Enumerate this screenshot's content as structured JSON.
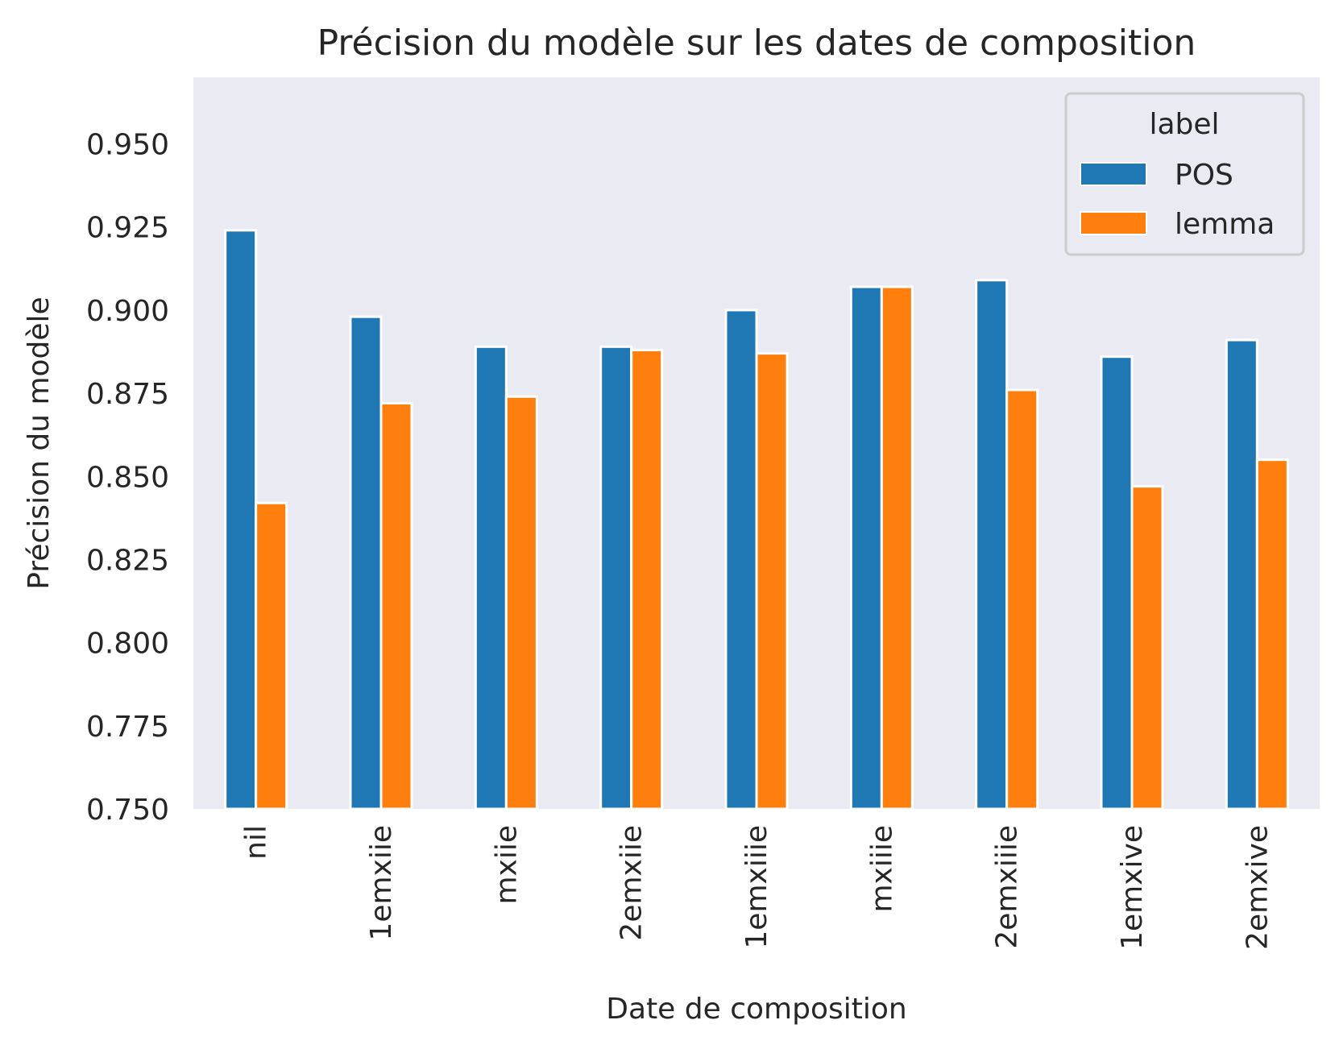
{
  "chart_data": {
    "type": "bar",
    "title": "Précision du modèle sur les dates de composition",
    "xlabel": "Date de composition",
    "ylabel": "Précision du modèle",
    "categories": [
      "nil",
      "1emxiie",
      "mxiie",
      "2emxiie",
      "1emxiiie",
      "mxiiie",
      "2emxiiie",
      "1emxive",
      "2emxive"
    ],
    "series": [
      {
        "name": "POS",
        "color": "#1f77b4",
        "values": [
          0.924,
          0.898,
          0.889,
          0.889,
          0.9,
          0.907,
          0.909,
          0.886,
          0.891
        ]
      },
      {
        "name": "lemma",
        "color": "#ff7f0e",
        "values": [
          0.842,
          0.872,
          0.874,
          0.888,
          0.887,
          0.907,
          0.876,
          0.847,
          0.855
        ]
      }
    ],
    "ylim": [
      0.75,
      0.97
    ],
    "yticks": [
      "0.750",
      "0.775",
      "0.800",
      "0.825",
      "0.850",
      "0.875",
      "0.900",
      "0.925",
      "0.950"
    ],
    "legend": {
      "title": "label",
      "placement": "top-right"
    },
    "grid": false,
    "background": "#eaeaf2"
  }
}
